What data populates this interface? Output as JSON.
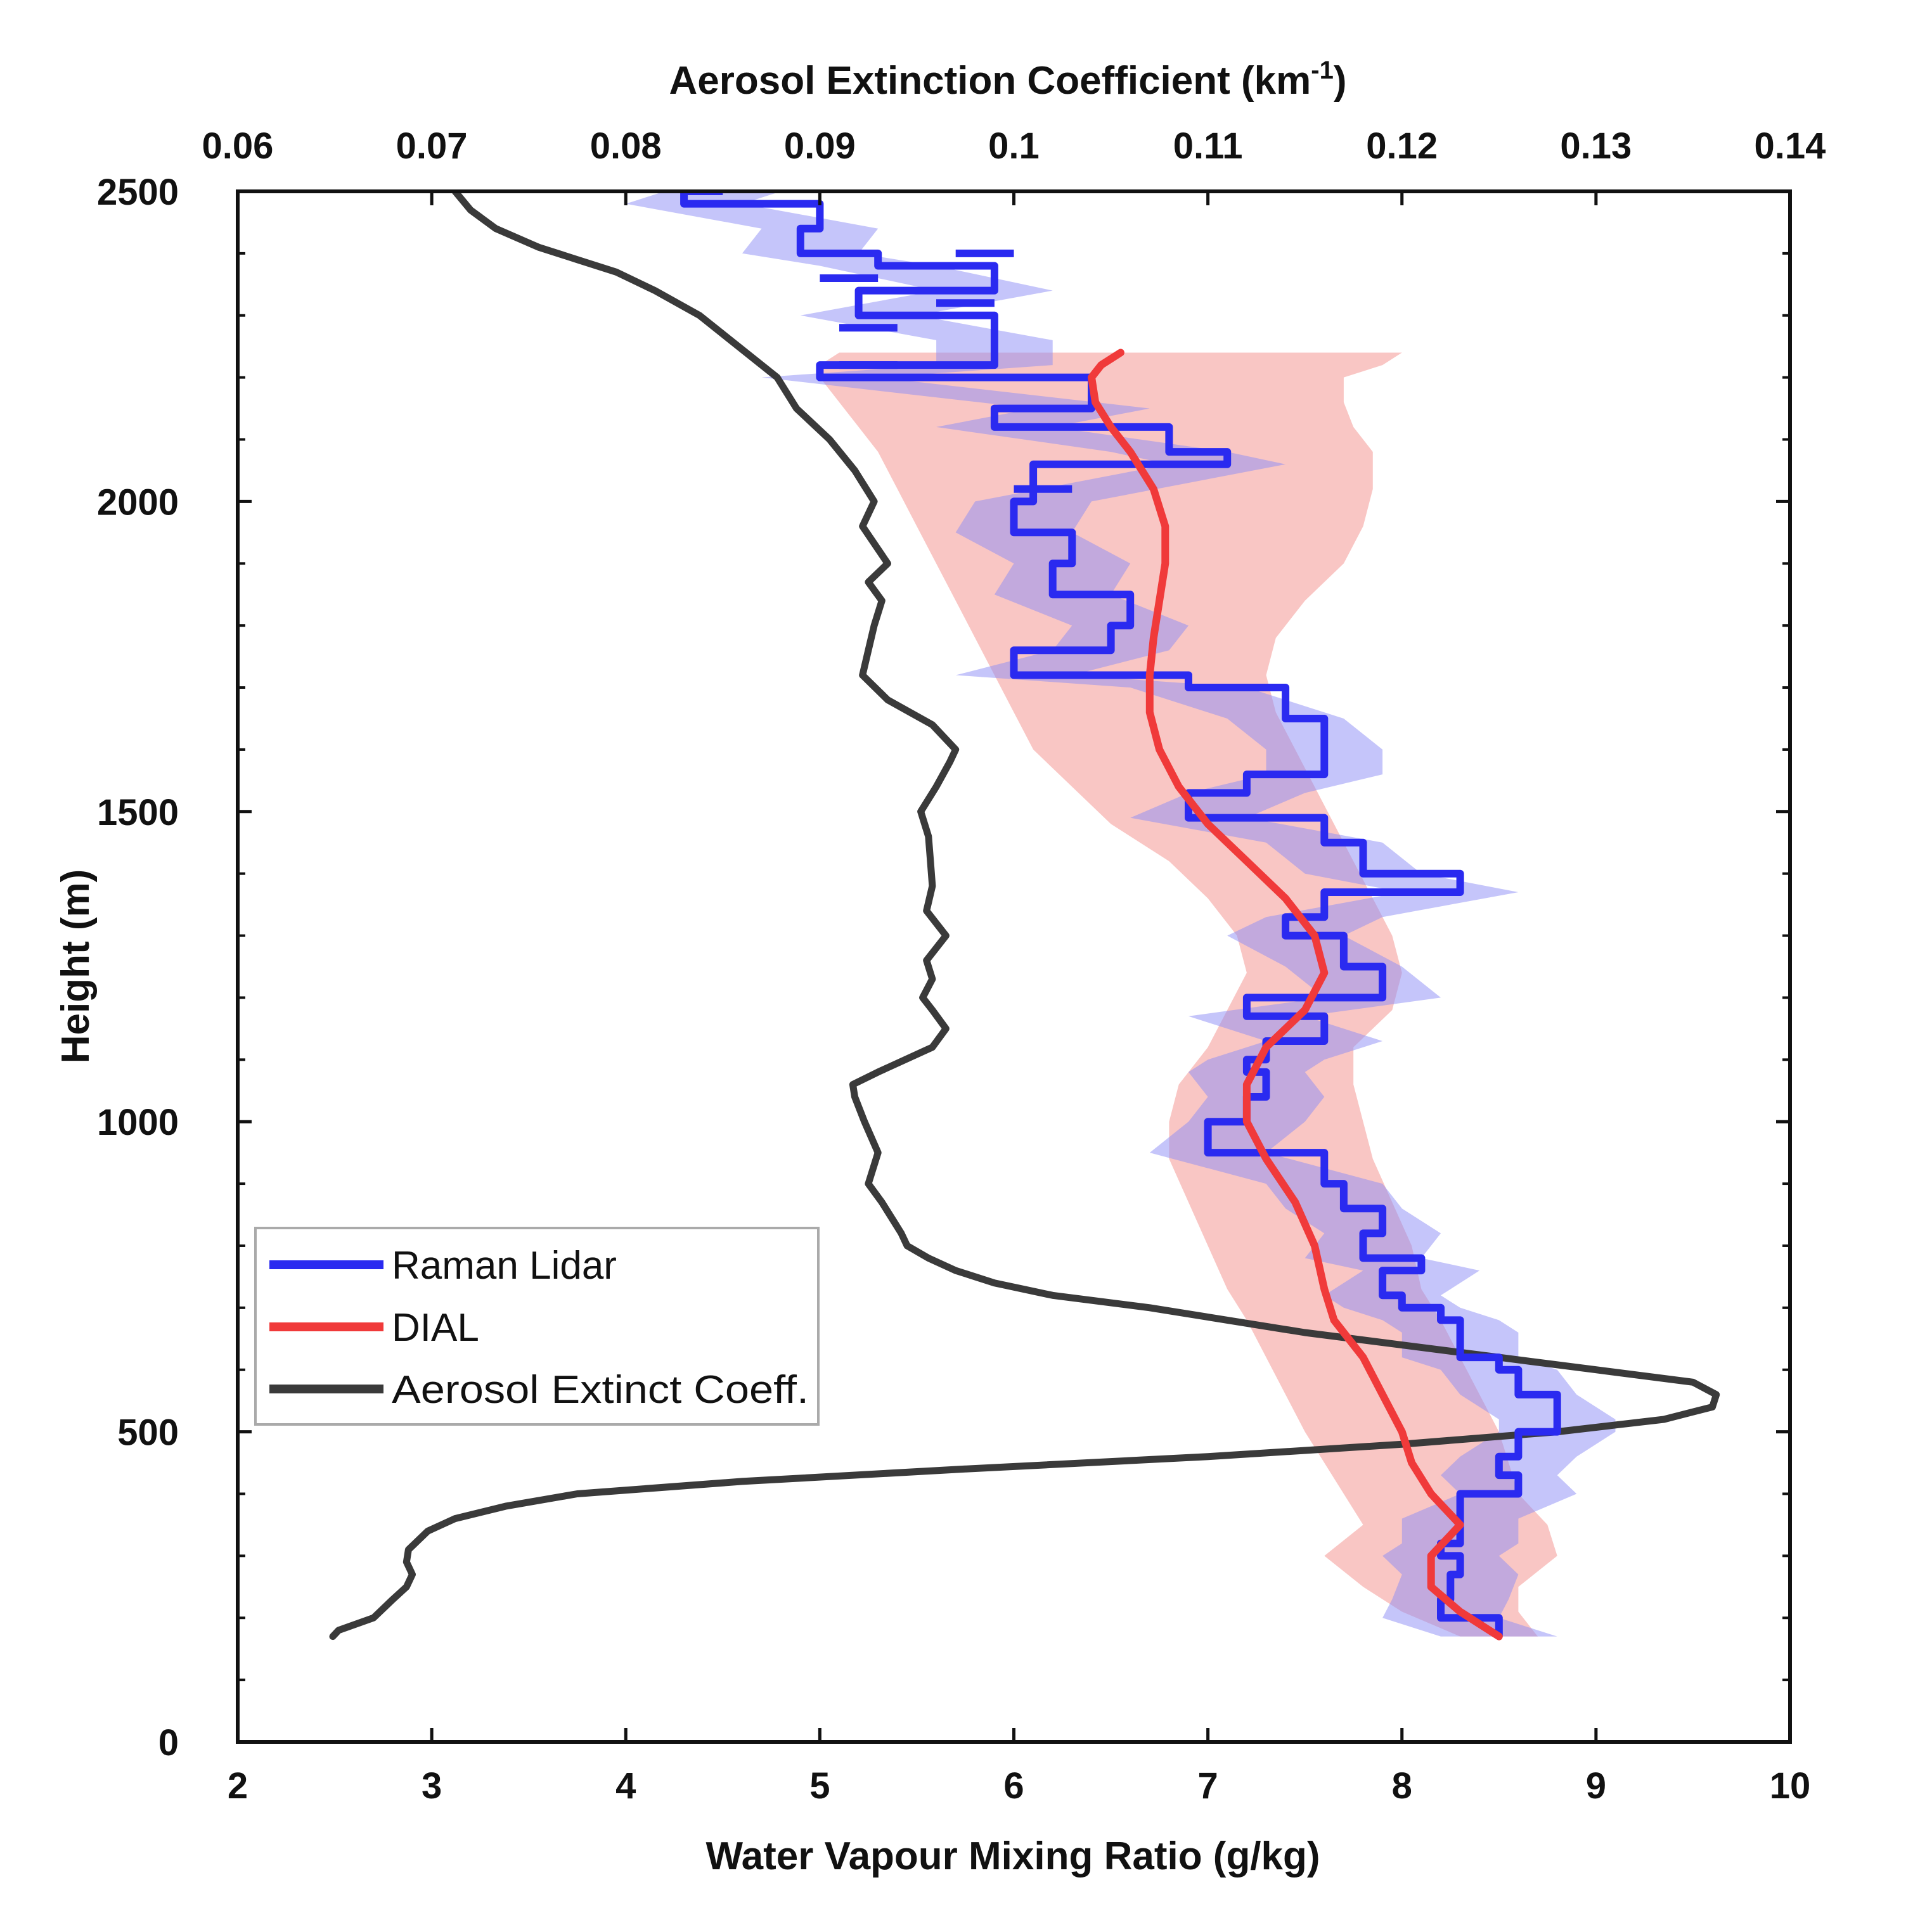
{
  "chart_data": {
    "type": "line",
    "title": "",
    "xlabel_bottom": "Water Vapour Mixing Ratio (g/kg)",
    "xlabel_top": "Aerosol Extinction Coefficient (km",
    "xlabel_top_sup": "-1",
    "xlabel_top_close": ")",
    "ylabel": "Height (m)",
    "xlim_bottom": [
      2,
      10
    ],
    "xlim_top": [
      0.06,
      0.14
    ],
    "ylim": [
      0,
      2500
    ],
    "xticks_bottom": [
      "2",
      "3",
      "4",
      "5",
      "6",
      "7",
      "8",
      "9",
      "10"
    ],
    "xticks_top": [
      "0.06",
      "0.07",
      "0.08",
      "0.09",
      "0.1",
      "0.11",
      "0.12",
      "0.13",
      "0.14"
    ],
    "yticks": [
      "0",
      "500",
      "1000",
      "1500",
      "2000",
      "2500"
    ],
    "legend": {
      "position": "lower-left",
      "entries": [
        {
          "label": "Raman Lidar",
          "color": "#2a2af0"
        },
        {
          "label": "DIAL",
          "color": "#f03a3a"
        },
        {
          "label": "Aerosol Extinct Coeff.",
          "color": "#3a3a3a"
        }
      ]
    },
    "series": [
      {
        "name": "Raman Lidar",
        "axis": "bottom",
        "color": "#2a2af0",
        "band_color": "#8c8cf5",
        "band_halfwidth": 0.3,
        "h": [
          170,
          200,
          230,
          270,
          300,
          320,
          360,
          400,
          430,
          460,
          500,
          520,
          560,
          600,
          620,
          660,
          680,
          700,
          720,
          760,
          780,
          820,
          860,
          900,
          950,
          1000,
          1040,
          1080,
          1100,
          1130,
          1170,
          1200,
          1250,
          1300,
          1330,
          1370,
          1400,
          1450,
          1490,
          1530,
          1560,
          1600,
          1650,
          1700,
          1720,
          1760,
          1800,
          1850,
          1900,
          1950,
          2000,
          2060,
          2080,
          2120,
          2150,
          2200,
          2220,
          2260,
          2300,
          2340,
          2380,
          2400,
          2440,
          2480,
          2500
        ],
        "x": [
          8.5,
          8.2,
          8.25,
          8.3,
          8.2,
          8.3,
          8.3,
          8.6,
          8.5,
          8.6,
          8.8,
          8.8,
          8.6,
          8.5,
          8.3,
          8.3,
          8.2,
          8.0,
          7.9,
          8.1,
          7.8,
          7.9,
          7.7,
          7.6,
          7.0,
          7.2,
          7.3,
          7.2,
          7.3,
          7.6,
          7.2,
          7.9,
          7.7,
          7.4,
          7.6,
          8.3,
          7.8,
          7.6,
          6.9,
          7.2,
          7.6,
          7.6,
          7.4,
          6.9,
          6.0,
          6.5,
          6.6,
          6.2,
          6.3,
          6.0,
          6.1,
          7.1,
          6.8,
          5.9,
          6.4,
          5.0,
          5.9,
          5.9,
          5.2,
          5.9,
          5.3,
          4.9,
          5.0,
          4.3,
          4.5
        ],
        "lw_h": [
          2020,
          2220,
          2280,
          2320,
          2360,
          2400
        ],
        "lw_x": [
          6.0,
          5.1,
          5.1,
          5.6,
          5.0,
          5.7
        ]
      },
      {
        "name": "DIAL",
        "axis": "bottom",
        "color": "#f03a3a",
        "band_color": "#f7b3b0",
        "h": [
          170,
          210,
          250,
          300,
          350,
          400,
          450,
          500,
          560,
          620,
          680,
          730,
          800,
          870,
          940,
          1000,
          1060,
          1120,
          1180,
          1240,
          1300,
          1360,
          1420,
          1480,
          1540,
          1600,
          1660,
          1720,
          1780,
          1840,
          1900,
          1960,
          2020,
          2080,
          2120,
          2160,
          2200,
          2220,
          2240
        ],
        "x": [
          8.5,
          8.3,
          8.15,
          8.15,
          8.3,
          8.15,
          8.05,
          8.0,
          7.9,
          7.8,
          7.65,
          7.6,
          7.55,
          7.45,
          7.3,
          7.2,
          7.2,
          7.3,
          7.5,
          7.6,
          7.55,
          7.4,
          7.2,
          7.0,
          6.85,
          6.75,
          6.7,
          6.7,
          6.72,
          6.75,
          6.78,
          6.78,
          6.72,
          6.6,
          6.5,
          6.42,
          6.4,
          6.45,
          6.55
        ],
        "band_lo": [
          8.3,
          8.0,
          7.8,
          7.6,
          7.8,
          7.7,
          7.6,
          7.5,
          7.4,
          7.3,
          7.2,
          7.1,
          7.0,
          6.9,
          6.8,
          6.8,
          6.85,
          7.0,
          7.1,
          7.2,
          7.15,
          7.0,
          6.8,
          6.5,
          6.3,
          6.1,
          6.0,
          5.9,
          5.8,
          5.7,
          5.6,
          5.5,
          5.4,
          5.3,
          5.2,
          5.1,
          5.0,
          5.0,
          5.1
        ],
        "band_hi": [
          8.7,
          8.6,
          8.6,
          8.8,
          8.75,
          8.6,
          8.55,
          8.5,
          8.4,
          8.3,
          8.2,
          8.1,
          8.05,
          7.95,
          7.85,
          7.8,
          7.75,
          7.75,
          7.95,
          8.0,
          7.95,
          7.85,
          7.75,
          7.65,
          7.55,
          7.45,
          7.35,
          7.3,
          7.35,
          7.5,
          7.7,
          7.8,
          7.85,
          7.85,
          7.75,
          7.7,
          7.7,
          7.9,
          8.0
        ]
      },
      {
        "name": "Aerosol Extinct Coeff.",
        "axis": "top",
        "color": "#3a3a3a",
        "h": [
          170,
          180,
          200,
          230,
          250,
          270,
          290,
          310,
          340,
          360,
          380,
          400,
          420,
          440,
          460,
          480,
          500,
          520,
          540,
          560,
          580,
          600,
          620,
          640,
          660,
          680,
          700,
          720,
          740,
          760,
          780,
          800,
          820,
          840,
          870,
          900,
          950,
          1000,
          1040,
          1060,
          1080,
          1120,
          1150,
          1180,
          1200,
          1230,
          1260,
          1300,
          1340,
          1380,
          1420,
          1460,
          1500,
          1540,
          1580,
          1600,
          1640,
          1680,
          1720,
          1760,
          1800,
          1840,
          1870,
          1900,
          1960,
          2000,
          2050,
          2100,
          2150,
          2200,
          2250,
          2300,
          2340,
          2370,
          2390,
          2410,
          2440,
          2470,
          2500
        ],
        "x": [
          0.0649,
          0.0652,
          0.067,
          0.068,
          0.0687,
          0.069,
          0.0687,
          0.0688,
          0.0698,
          0.0712,
          0.0738,
          0.0775,
          0.086,
          0.0975,
          0.11,
          0.12,
          0.128,
          0.1335,
          0.136,
          0.1362,
          0.135,
          0.13,
          0.125,
          0.12,
          0.115,
          0.111,
          0.107,
          0.102,
          0.099,
          0.097,
          0.0956,
          0.0945,
          0.0942,
          0.0938,
          0.0932,
          0.0925,
          0.093,
          0.0923,
          0.0918,
          0.0917,
          0.093,
          0.0958,
          0.0965,
          0.0958,
          0.0953,
          0.0958,
          0.0955,
          0.0965,
          0.0955,
          0.0958,
          0.0957,
          0.0956,
          0.0952,
          0.096,
          0.0967,
          0.097,
          0.0958,
          0.0935,
          0.0922,
          0.0925,
          0.0928,
          0.0932,
          0.0925,
          0.0935,
          0.0922,
          0.0928,
          0.0918,
          0.0905,
          0.0888,
          0.0878,
          0.0858,
          0.0838,
          0.0815,
          0.0795,
          0.0775,
          0.0755,
          0.0733,
          0.072,
          0.0712
        ]
      }
    ]
  }
}
